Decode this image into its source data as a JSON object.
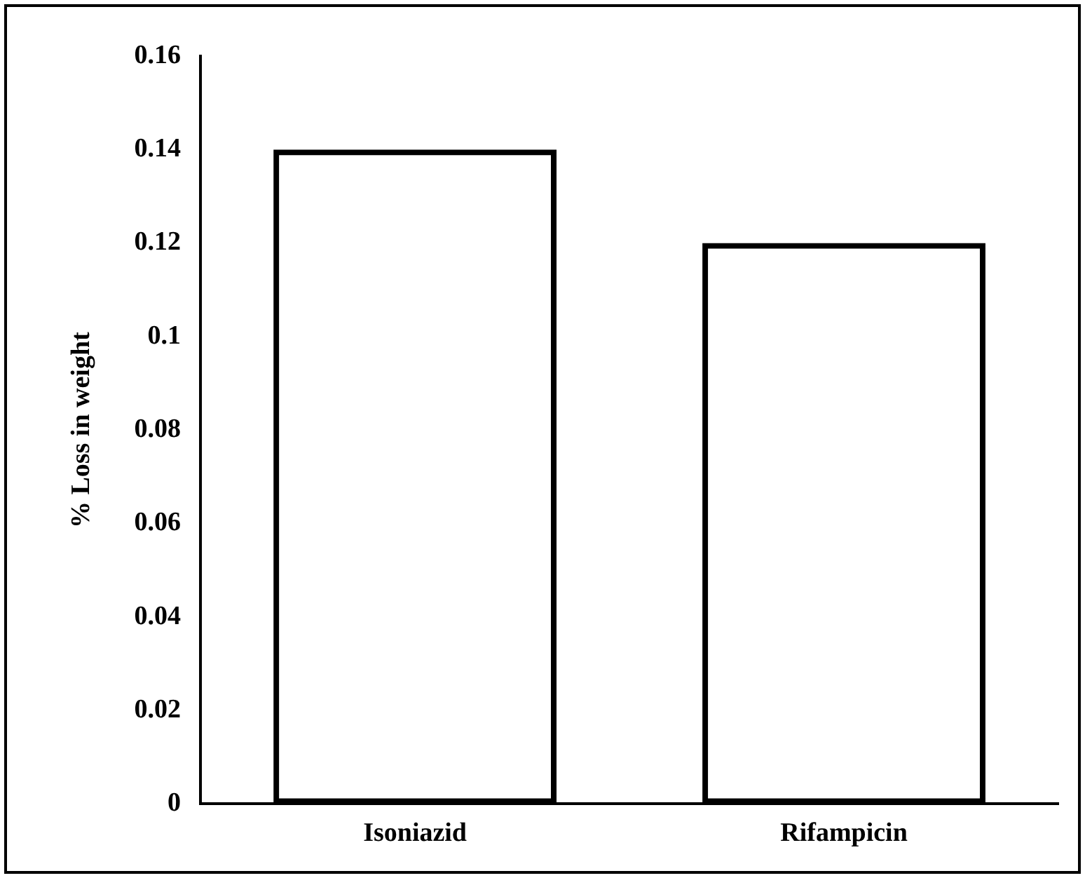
{
  "chart_data": {
    "type": "bar",
    "ylabel": "% Loss in weight",
    "categories": [
      "Isoniazid",
      "Rifampicin"
    ],
    "values": [
      0.14,
      0.12
    ],
    "colors": [
      "#000000",
      "#000000"
    ],
    "ylim": [
      0,
      0.16
    ],
    "yticks": [
      0,
      0.02,
      0.04,
      0.06,
      0.08,
      0.1,
      0.12,
      0.14,
      0.16
    ],
    "grid": false,
    "legend": false
  }
}
